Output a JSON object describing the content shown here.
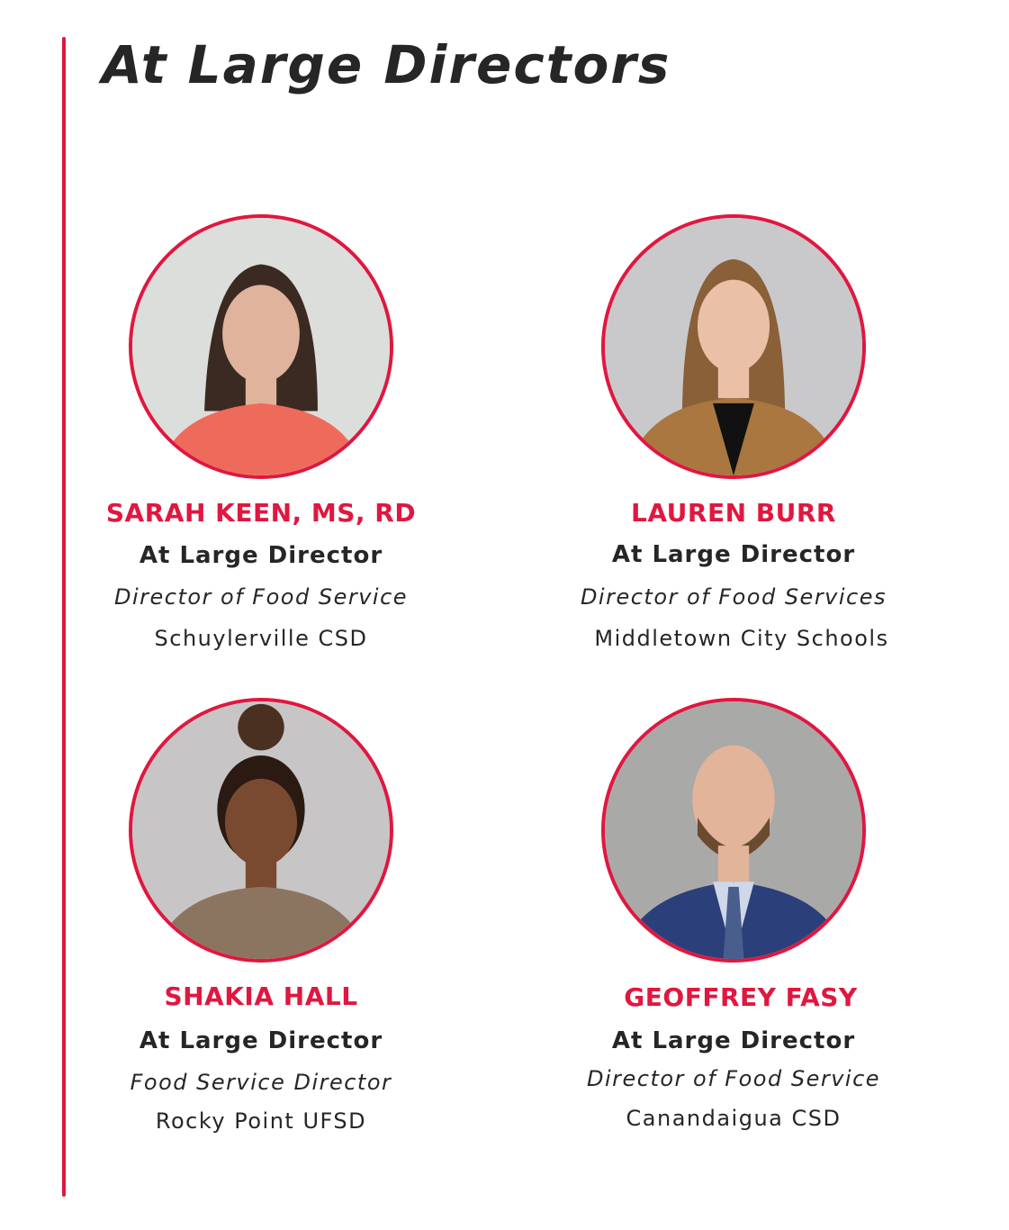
{
  "page": {
    "title": "At Large Directors"
  },
  "colors": {
    "accent": "#e0173f",
    "text": "#262626"
  },
  "directors": [
    {
      "name": "SARAH KEEN, MS, RD",
      "role": "At Large Director",
      "title": "Director of Food Service",
      "organization": "Schuylerville CSD"
    },
    {
      "name": "LAUREN BURR",
      "role": "At Large Director",
      "title": "Director of Food Services",
      "organization": "Middletown City Schools"
    },
    {
      "name": "SHAKIA HALL",
      "role": "At Large Director",
      "title": "Food Service Director",
      "organization": "Rocky Point UFSD"
    },
    {
      "name": "GEOFFREY FASY",
      "role": "At Large Director",
      "title": "Director of Food Service",
      "organization": "Canandaigua CSD"
    }
  ]
}
